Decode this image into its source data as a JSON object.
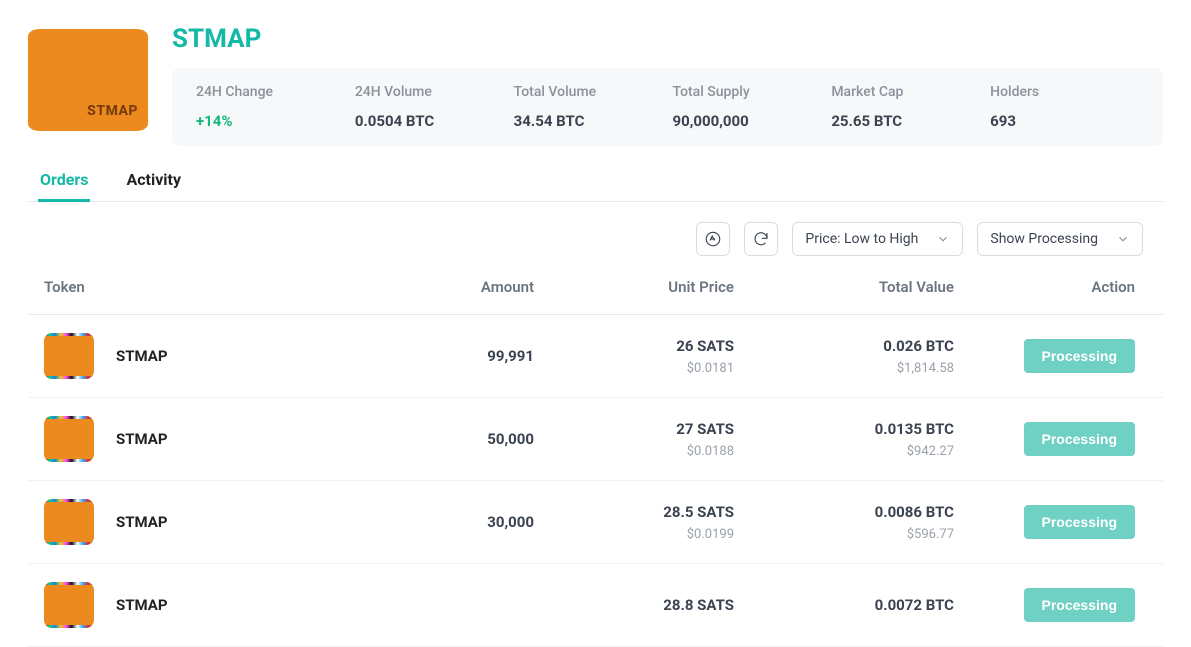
{
  "token": {
    "symbol": "STMAP",
    "brand_in_logo": "STMAP"
  },
  "stats": {
    "change_label": "24H Change",
    "change_value": "+14%",
    "volume24_label": "24H Volume",
    "volume24_value": "0.0504 BTC",
    "total_volume_label": "Total Volume",
    "total_volume_value": "34.54 BTC",
    "total_supply_label": "Total Supply",
    "total_supply_value": "90,000,000",
    "market_cap_label": "Market Cap",
    "market_cap_value": "25.65 BTC",
    "holders_label": "Holders",
    "holders_value": "693"
  },
  "tabs": {
    "orders": "Orders",
    "activity": "Activity"
  },
  "controls": {
    "sort_label": "Price: Low to High",
    "filter_label": "Show Processing"
  },
  "table": {
    "headers": {
      "token": "Token",
      "amount": "Amount",
      "unit_price": "Unit Price",
      "total_value": "Total Value",
      "action": "Action"
    }
  },
  "orders": [
    {
      "name": "STMAP",
      "amount": "99,991",
      "price_sats": "26 SATS",
      "price_usd": "$0.0181",
      "total_btc": "0.026 BTC",
      "total_usd": "$1,814.58",
      "action": "Processing"
    },
    {
      "name": "STMAP",
      "amount": "50,000",
      "price_sats": "27 SATS",
      "price_usd": "$0.0188",
      "total_btc": "0.0135 BTC",
      "total_usd": "$942.27",
      "action": "Processing"
    },
    {
      "name": "STMAP",
      "amount": "30,000",
      "price_sats": "28.5 SATS",
      "price_usd": "$0.0199",
      "total_btc": "0.0086 BTC",
      "total_usd": "$596.77",
      "action": "Processing"
    },
    {
      "name": "STMAP",
      "amount": "",
      "price_sats": "28.8 SATS",
      "price_usd": "",
      "total_btc": "0.0072 BTC",
      "total_usd": "",
      "action": "Processing"
    }
  ],
  "colors": {
    "accent": "#14b8a6",
    "positive": "#16b77b",
    "processing_btn": "#6fd0c4",
    "token_bg": "#ec8a1f",
    "muted_text": "#8a929c",
    "panel_bg": "#f7f8f9",
    "border": "#e6e8ea"
  }
}
